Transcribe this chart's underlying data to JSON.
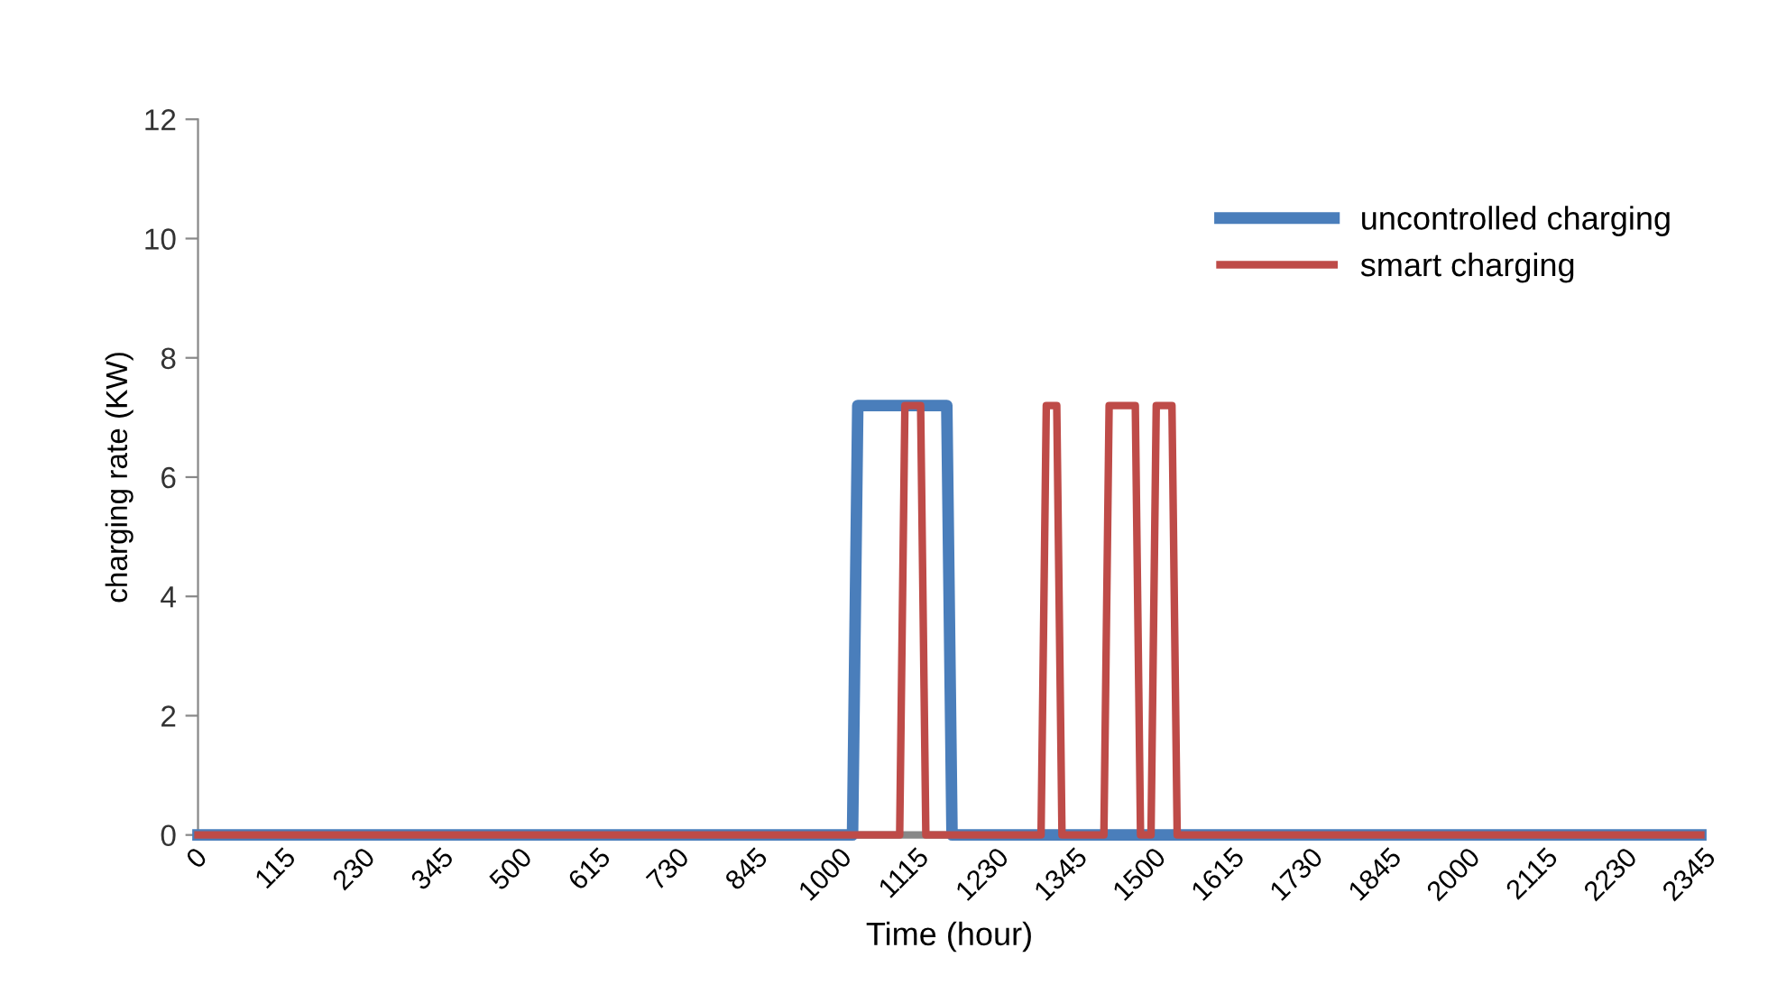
{
  "chart_data": {
    "type": "line",
    "xlabel": "Time (hour)",
    "ylabel": "charging rate (KW)",
    "ylim": [
      0,
      12
    ],
    "yticks": [
      0,
      2,
      4,
      6,
      8,
      10,
      12
    ],
    "categories": [
      "0",
      null,
      null,
      null,
      null,
      null,
      null,
      null,
      null,
      null,
      null,
      null,
      null,
      null,
      null,
      "115",
      null,
      null,
      null,
      null,
      null,
      null,
      null,
      null,
      null,
      null,
      null,
      null,
      null,
      null,
      "230",
      null,
      null,
      null,
      null,
      null,
      null,
      null,
      null,
      null,
      null,
      null,
      null,
      null,
      null,
      "345",
      null,
      null,
      null,
      null,
      null,
      null,
      null,
      null,
      null,
      null,
      null,
      null,
      null,
      null,
      "500",
      null,
      null,
      null,
      null,
      null,
      null,
      null,
      null,
      null,
      null,
      null,
      null,
      null,
      null,
      "615",
      null,
      null,
      null,
      null,
      null,
      null,
      null,
      null,
      null,
      null,
      null,
      null,
      null,
      null,
      "730",
      null,
      null,
      null,
      null,
      null,
      null,
      null,
      null,
      null,
      null,
      null,
      null,
      null,
      null,
      "845",
      null,
      null,
      null,
      null,
      null,
      null,
      null,
      null,
      null,
      null,
      null,
      null,
      null,
      null,
      "1000",
      null,
      null,
      null,
      null,
      null,
      null,
      null,
      null,
      null,
      null,
      null,
      null,
      null,
      null,
      "1115",
      null,
      null,
      null,
      null,
      null,
      null,
      null,
      null,
      null,
      null,
      null,
      null,
      null,
      null,
      "1230",
      null,
      null,
      null,
      null,
      null,
      null,
      null,
      null,
      null,
      null,
      null,
      null,
      null,
      null,
      "1345",
      null,
      null,
      null,
      null,
      null,
      null,
      null,
      null,
      null,
      null,
      null,
      null,
      null,
      null,
      "1500",
      null,
      null,
      null,
      null,
      null,
      null,
      null,
      null,
      null,
      null,
      null,
      null,
      null,
      null,
      "1615",
      null,
      null,
      null,
      null,
      null,
      null,
      null,
      null,
      null,
      null,
      null,
      null,
      null,
      null,
      "1730",
      null,
      null,
      null,
      null,
      null,
      null,
      null,
      null,
      null,
      null,
      null,
      null,
      null,
      null,
      "1845",
      null,
      null,
      null,
      null,
      null,
      null,
      null,
      null,
      null,
      null,
      null,
      null,
      null,
      null,
      "2000",
      null,
      null,
      null,
      null,
      null,
      null,
      null,
      null,
      null,
      null,
      null,
      null,
      null,
      null,
      "2115",
      null,
      null,
      null,
      null,
      null,
      null,
      null,
      null,
      null,
      null,
      null,
      null,
      null,
      null,
      "2230",
      null,
      null,
      null,
      null,
      null,
      null,
      null,
      null,
      null,
      null,
      null,
      null,
      null,
      null,
      "2345",
      null,
      null
    ],
    "grid": false,
    "legend": "top right",
    "marker": "none",
    "line_style": "solid",
    "series": [
      {
        "name": "uncontrolled charging",
        "color": "#4a7ebb",
        "values": [
          0,
          0,
          0,
          0,
          0,
          0,
          0,
          0,
          0,
          0,
          0,
          0,
          0,
          0,
          0,
          0,
          0,
          0,
          0,
          0,
          0,
          0,
          0,
          0,
          0,
          0,
          0,
          0,
          0,
          0,
          0,
          0,
          0,
          0,
          0,
          0,
          0,
          0,
          0,
          0,
          0,
          0,
          0,
          0,
          0,
          0,
          0,
          0,
          0,
          0,
          0,
          0,
          0,
          0,
          0,
          0,
          0,
          0,
          0,
          0,
          0,
          0,
          0,
          0,
          0,
          0,
          0,
          0,
          0,
          0,
          0,
          0,
          0,
          0,
          0,
          0,
          0,
          0,
          0,
          0,
          0,
          0,
          0,
          0,
          0,
          0,
          0,
          0,
          0,
          0,
          0,
          0,
          0,
          0,
          0,
          0,
          0,
          0,
          0,
          0,
          0,
          0,
          0,
          0,
          0,
          0,
          0,
          0,
          0,
          0,
          0,
          0,
          0,
          0,
          0,
          0,
          0,
          0,
          0,
          0,
          0,
          0,
          0,
          0,
          0,
          0,
          7.2,
          7.2,
          7.2,
          7.2,
          7.2,
          7.2,
          7.2,
          7.2,
          7.2,
          7.2,
          7.2,
          7.2,
          7.2,
          7.2,
          7.2,
          7.2,
          7.2,
          7.2,
          0,
          0,
          0,
          0,
          0,
          0,
          0,
          0,
          0,
          0,
          0,
          0,
          0,
          0,
          0,
          0,
          0,
          0,
          0,
          0,
          0,
          0,
          0,
          0,
          0,
          0,
          0,
          0,
          0,
          0,
          0,
          0,
          0,
          0,
          0,
          0,
          0,
          0,
          0,
          0,
          0,
          0,
          0,
          0,
          0,
          0,
          0,
          0,
          0,
          0,
          0,
          0,
          0,
          0,
          0,
          0,
          0,
          0,
          0,
          0,
          0,
          0,
          0,
          0,
          0,
          0,
          0,
          0,
          0,
          0,
          0,
          0,
          0,
          0,
          0,
          0,
          0,
          0,
          0,
          0,
          0,
          0,
          0,
          0,
          0,
          0,
          0,
          0,
          0,
          0,
          0,
          0,
          0,
          0,
          0,
          0,
          0,
          0,
          0,
          0,
          0,
          0,
          0,
          0,
          0,
          0,
          0,
          0,
          0,
          0,
          0,
          0,
          0,
          0,
          0,
          0,
          0,
          0,
          0,
          0,
          0,
          0,
          0,
          0,
          0,
          0,
          0,
          0,
          0,
          0,
          0,
          0,
          0,
          0,
          0,
          0,
          0,
          0,
          0,
          0,
          0,
          0,
          0,
          0
        ]
      },
      {
        "name": "smart charging",
        "color": "#be4b48",
        "values": [
          0,
          0,
          0,
          0,
          0,
          0,
          0,
          0,
          0,
          0,
          0,
          0,
          0,
          0,
          0,
          0,
          0,
          0,
          0,
          0,
          0,
          0,
          0,
          0,
          0,
          0,
          0,
          0,
          0,
          0,
          0,
          0,
          0,
          0,
          0,
          0,
          0,
          0,
          0,
          0,
          0,
          0,
          0,
          0,
          0,
          0,
          0,
          0,
          0,
          0,
          0,
          0,
          0,
          0,
          0,
          0,
          0,
          0,
          0,
          0,
          0,
          0,
          0,
          0,
          0,
          0,
          0,
          0,
          0,
          0,
          0,
          0,
          0,
          0,
          0,
          0,
          0,
          0,
          0,
          0,
          0,
          0,
          0,
          0,
          0,
          0,
          0,
          0,
          0,
          0,
          0,
          0,
          0,
          0,
          0,
          0,
          0,
          0,
          0,
          0,
          0,
          0,
          0,
          0,
          0,
          0,
          0,
          0,
          0,
          0,
          0,
          0,
          0,
          0,
          0,
          0,
          0,
          0,
          0,
          0,
          0,
          0,
          0,
          0,
          0,
          0,
          0,
          0,
          0,
          0,
          0,
          0,
          0,
          0,
          0,
          7.2,
          7.2,
          7.2,
          7.2,
          0,
          0,
          0,
          0,
          0,
          0,
          0,
          0,
          0,
          0,
          0,
          0,
          0,
          0,
          0,
          0,
          0,
          0,
          0,
          0,
          0,
          0,
          0,
          7.2,
          7.2,
          7.2,
          0,
          0,
          0,
          0,
          0,
          0,
          0,
          0,
          0,
          7.2,
          7.2,
          7.2,
          7.2,
          7.2,
          7.2,
          0,
          0,
          0,
          7.2,
          7.2,
          7.2,
          7.2,
          0,
          0,
          0,
          0,
          0,
          0,
          0,
          0,
          0,
          0,
          0,
          0,
          0,
          0,
          0,
          0,
          0,
          0,
          0,
          0,
          0,
          0,
          0,
          0,
          0,
          0,
          0,
          0,
          0,
          0,
          0,
          0,
          0,
          0,
          0,
          0,
          0,
          0,
          0,
          0,
          0,
          0,
          0,
          0,
          0,
          0,
          0,
          0,
          0,
          0,
          0,
          0,
          0,
          0,
          0,
          0,
          0,
          0,
          0,
          0,
          0,
          0,
          0,
          0,
          0,
          0,
          0,
          0,
          0,
          0,
          0,
          0,
          0,
          0,
          0,
          0,
          0,
          0,
          0,
          0,
          0,
          0,
          0,
          0,
          0,
          0,
          0,
          0,
          0,
          0,
          0,
          0,
          0,
          0,
          0,
          0,
          0,
          0,
          0,
          0,
          0
        ]
      }
    ]
  }
}
